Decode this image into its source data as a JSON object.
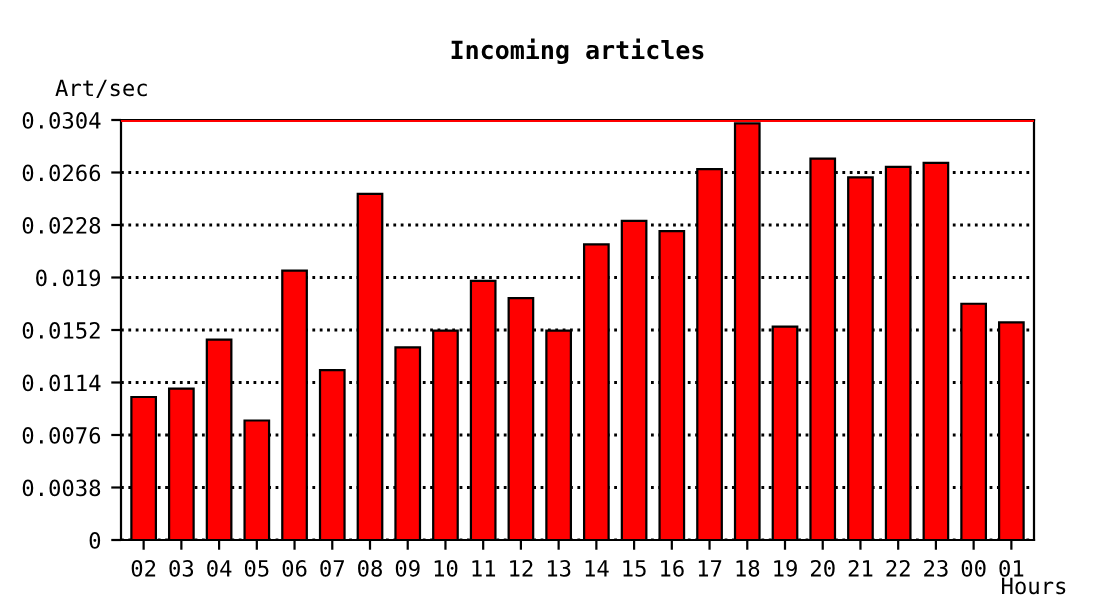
{
  "chart_data": {
    "type": "bar",
    "title": "Incoming articles",
    "ylabel": "Art/sec",
    "xlabel": "Hours",
    "categories": [
      "02",
      "03",
      "04",
      "05",
      "06",
      "07",
      "08",
      "09",
      "10",
      "11",
      "12",
      "13",
      "14",
      "15",
      "16",
      "17",
      "18",
      "19",
      "20",
      "21",
      "22",
      "23",
      "00",
      "01"
    ],
    "values": [
      0.01035,
      0.01095,
      0.0145,
      0.00865,
      0.0195,
      0.0123,
      0.02505,
      0.01395,
      0.01515,
      0.01875,
      0.0175,
      0.01515,
      0.0214,
      0.0231,
      0.02235,
      0.02685,
      0.03015,
      0.01545,
      0.0276,
      0.02625,
      0.027,
      0.0273,
      0.0171,
      0.01575
    ],
    "color": "#ff0000",
    "ylim": [
      0,
      0.0304
    ],
    "yticks": [
      0,
      0.0038,
      0.0076,
      0.0114,
      0.0152,
      0.019,
      0.0228,
      0.0266,
      0.0304
    ],
    "grid": "y",
    "line_style": "dotted",
    "ref_lines": [
      {
        "axis": "y",
        "value": 0.0304,
        "color": "#ff0000"
      }
    ]
  }
}
